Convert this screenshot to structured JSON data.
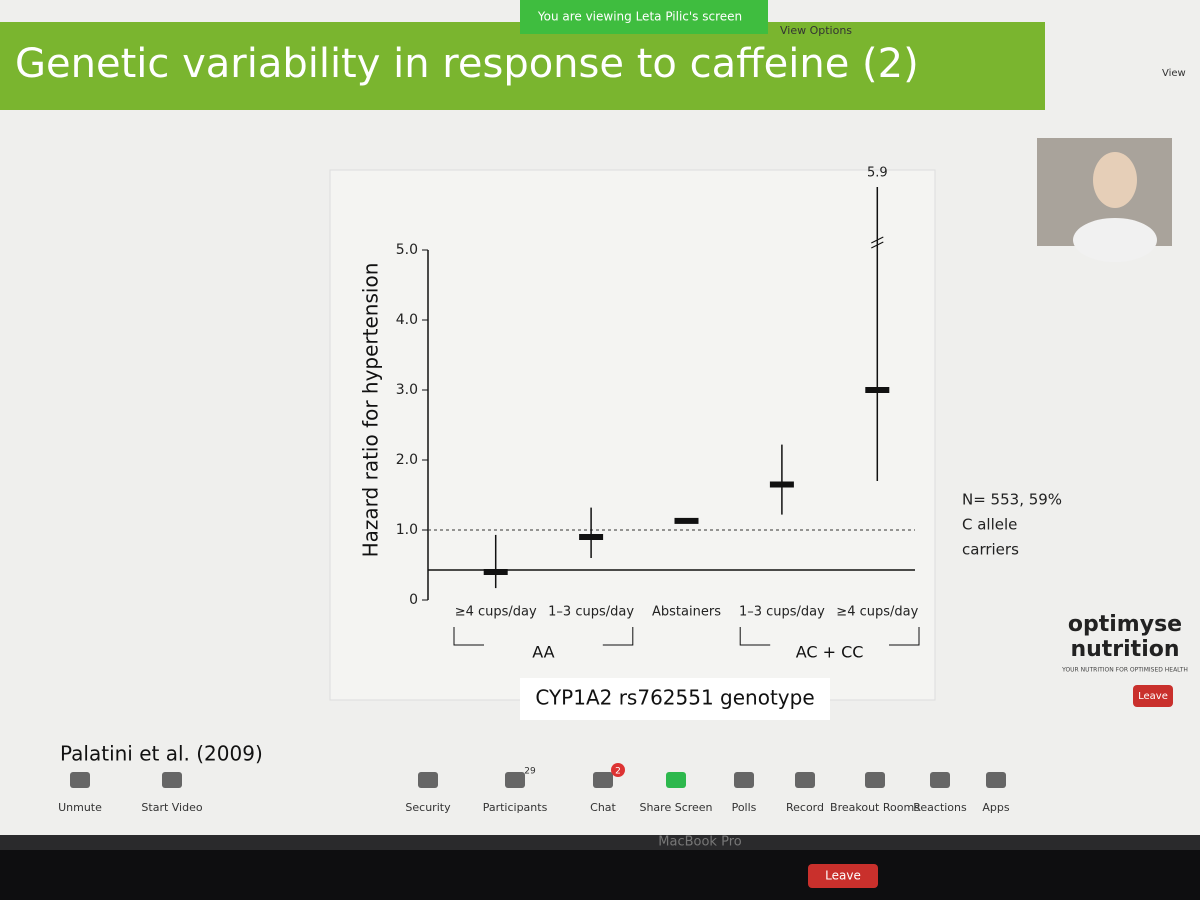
{
  "zoom": {
    "banner": "You are viewing Leta Pilic's screen",
    "view_options": "View Options",
    "view": "View",
    "toolbar": [
      {
        "label": "Unmute"
      },
      {
        "label": "Start Video"
      },
      {
        "label": "Security"
      },
      {
        "label": "Participants",
        "badge": 29
      },
      {
        "label": "Chat",
        "badge": 2
      },
      {
        "label": "Share Screen"
      },
      {
        "label": "Polls"
      },
      {
        "label": "Record"
      },
      {
        "label": "Breakout Rooms"
      },
      {
        "label": "Reactions"
      },
      {
        "label": "Apps"
      }
    ],
    "leave": "Leave",
    "device": "MacBook Pro",
    "touchbar_leave": "Leave"
  },
  "slide": {
    "title": "Genetic variability in response to caffeine (2)",
    "citation": "Palatini et al. (2009)",
    "note": [
      "N= 553, 59%",
      "C allele",
      "carriers"
    ],
    "logo": {
      "line1": "optimyse",
      "line2": "nutrition",
      "tagline": "YOUR NUTRITION FOR OPTIMISED HEALTH"
    },
    "chart": {
      "type": "errorbar",
      "y_label": "Hazard ratio for hypertension",
      "x_label": "CYP1A2 rs762551 genotype",
      "categories": [
        "≥4 cups/day",
        "1–3 cups/day",
        "Abstainers",
        "1–3 cups/day",
        "≥4 cups/day"
      ],
      "values": [
        0.4,
        0.9,
        1.13,
        1.65,
        3.0
      ],
      "lower": [
        0.17,
        0.6,
        null,
        1.22,
        1.7
      ],
      "upper": [
        0.93,
        1.32,
        null,
        2.22,
        5.9
      ],
      "groups": [
        {
          "label": "AA",
          "from": 0,
          "to": 1
        },
        {
          "label": "AC + CC",
          "from": 3,
          "to": 4
        }
      ],
      "ylim": [
        0,
        5
      ],
      "yticks": [
        0,
        {
          "value": 1,
          "label": "1.0"
        },
        {
          "value": 2,
          "label": "2.0"
        },
        {
          "value": 3,
          "label": "3.0"
        },
        {
          "value": 4,
          "label": "4.0"
        },
        {
          "value": 5,
          "label": "5.0"
        }
      ],
      "reference_line": 1,
      "color": "#111111"
    }
  }
}
